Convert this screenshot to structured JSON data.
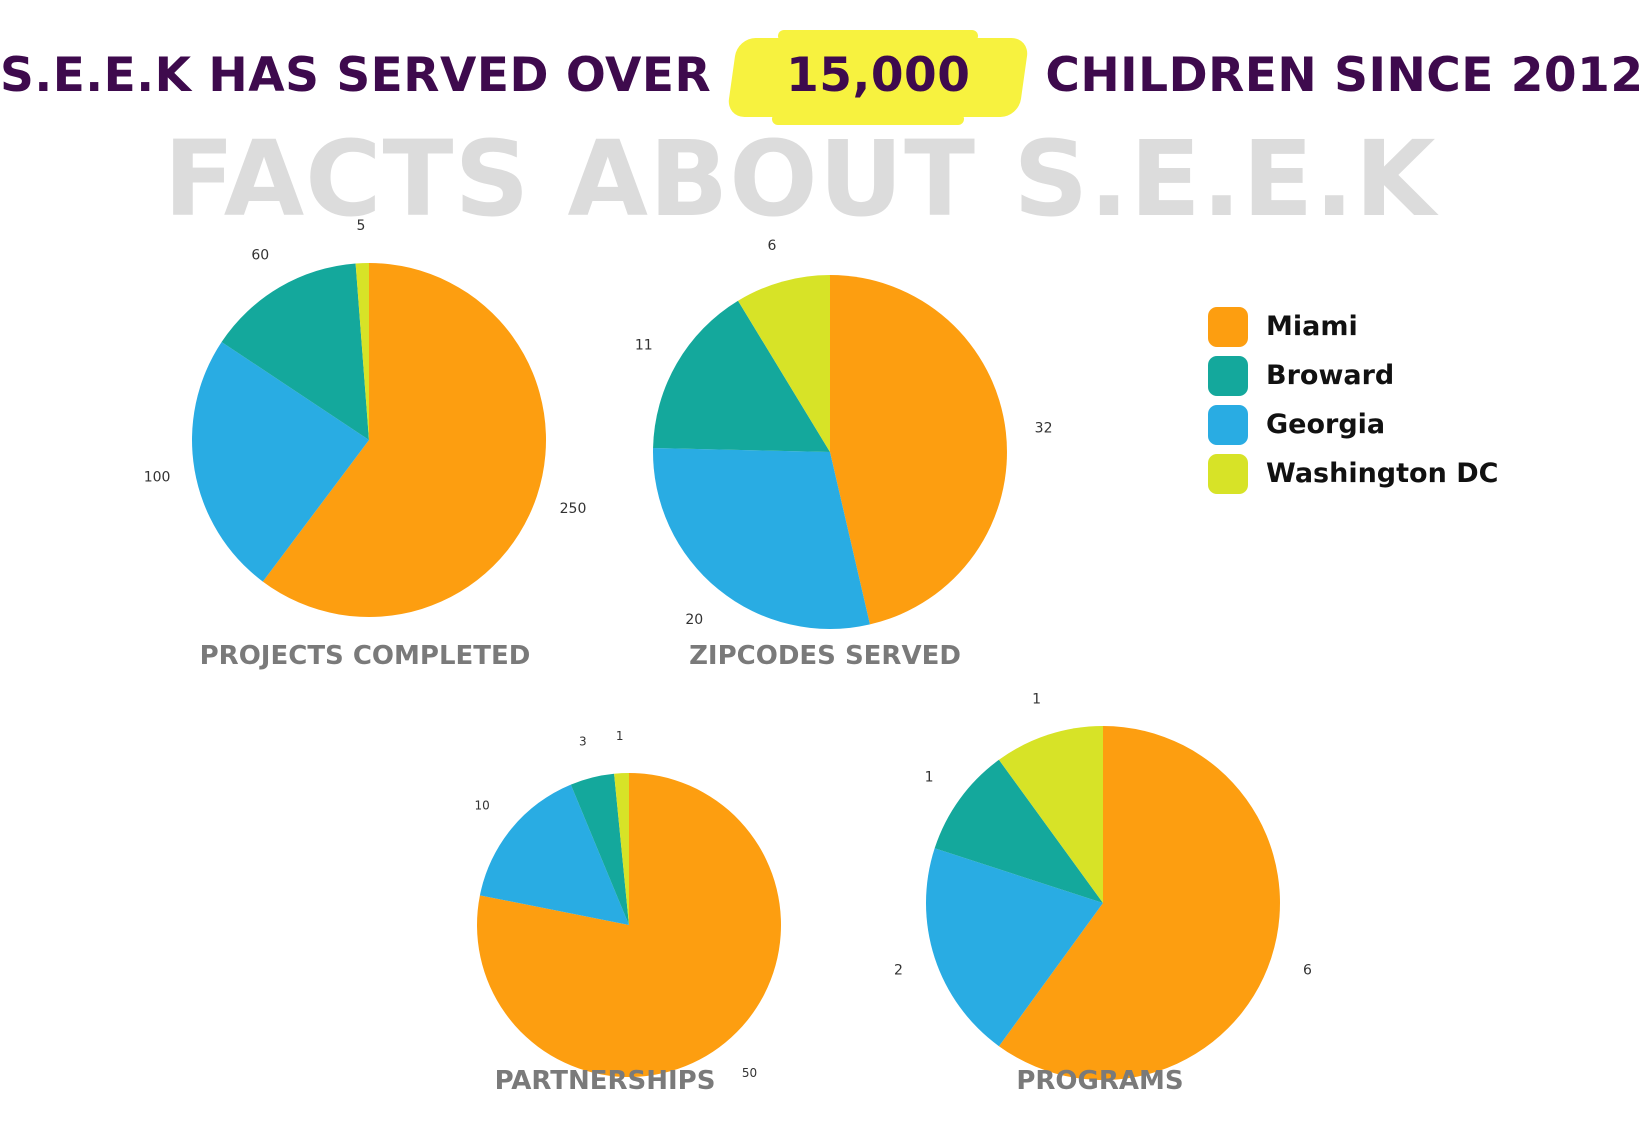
{
  "headline": {
    "before": "S.E.E.K HAS SERVED OVER",
    "highlight": "15,000",
    "after": "CHILDREN SINCE 2012",
    "highlight_color": "#f7f23f",
    "text_color": "#3e0a4d"
  },
  "watermark": "FACTS ABOUT S.E.E.K",
  "legend": [
    {
      "label": "Miami",
      "color": "#fd9e10"
    },
    {
      "label": "Broward",
      "color": "#14a89c"
    },
    {
      "label": "Georgia",
      "color": "#29ace3"
    },
    {
      "label": "Washington DC",
      "color": "#d7e327"
    }
  ],
  "chart_data": [
    {
      "type": "pie",
      "title": "PROJECTS COMPLETED",
      "categories": [
        "Miami",
        "Broward",
        "Georgia",
        "Washington DC"
      ],
      "values": [
        250,
        60,
        100,
        5
      ],
      "order": [
        "Miami",
        "Georgia",
        "Broward",
        "Washington DC"
      ],
      "labels": [
        "250",
        "60",
        "100",
        "5"
      ]
    },
    {
      "type": "pie",
      "title": "ZIPCODES SERVED",
      "categories": [
        "Miami",
        "Broward",
        "Georgia",
        "Washington DC"
      ],
      "values": [
        32,
        11,
        20,
        6
      ],
      "order": [
        "Miami",
        "Georgia",
        "Broward",
        "Washington DC"
      ],
      "labels": [
        "32",
        "11",
        "20",
        "6"
      ]
    },
    {
      "type": "pie",
      "title": "PARTNERSHIPS",
      "categories": [
        "Miami",
        "Broward",
        "Georgia",
        "Washington DC"
      ],
      "values": [
        50,
        3,
        10,
        1
      ],
      "order": [
        "Miami",
        "Georgia",
        "Broward",
        "Washington DC"
      ],
      "labels": [
        "50",
        "3",
        "10",
        "1"
      ]
    },
    {
      "type": "pie",
      "title": "PROGRAMS",
      "categories": [
        "Miami",
        "Broward",
        "Georgia",
        "Washington DC"
      ],
      "values": [
        6,
        1,
        2,
        1
      ],
      "order": [
        "Miami",
        "Georgia",
        "Broward",
        "Washington DC"
      ],
      "labels": [
        "6",
        "1",
        "2",
        "1"
      ]
    }
  ]
}
